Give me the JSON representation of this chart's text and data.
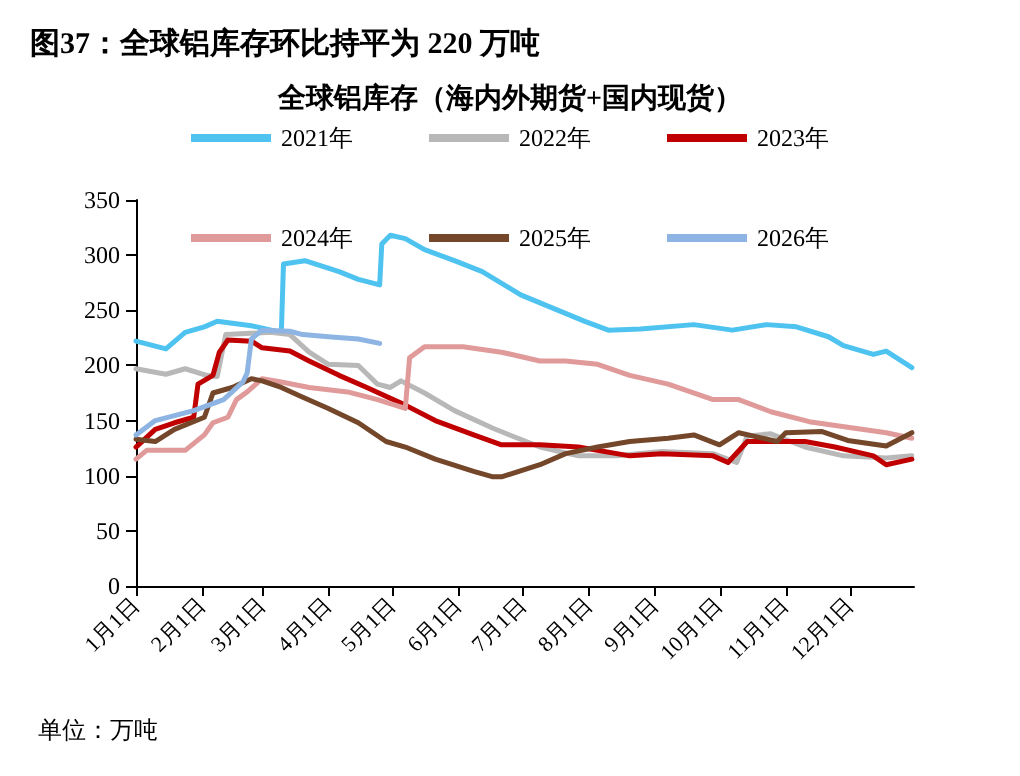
{
  "chart_data": {
    "type": "line",
    "title": "图37：全球铝库存环比持平为 220 万吨",
    "subtitle": "全球铝库存（海内外期货+国内现货）",
    "annotations": [
      "单位：万吨"
    ],
    "xlim": [
      "--01-01",
      "--12-31"
    ],
    "xticks": [
      {
        "value": "--01-01",
        "label": "1月1日"
      },
      {
        "value": "--02-01",
        "label": "2月1日"
      },
      {
        "value": "--03-01",
        "label": "3月1日"
      },
      {
        "value": "--04-01",
        "label": "4月1日"
      },
      {
        "value": "--05-01",
        "label": "5月1日"
      },
      {
        "value": "--06-01",
        "label": "6月1日"
      },
      {
        "value": "--07-01",
        "label": "7月1日"
      },
      {
        "value": "--08-01",
        "label": "8月1日"
      },
      {
        "value": "--09-01",
        "label": "9月1日"
      },
      {
        "value": "--10-01",
        "label": "10月1日"
      },
      {
        "value": "--11-01",
        "label": "11月1日"
      },
      {
        "value": "--12-01",
        "label": "12月1日"
      }
    ],
    "ylim": [
      0,
      350
    ],
    "yticks": [
      0,
      50,
      100,
      150,
      200,
      250,
      300,
      350
    ],
    "grid": false,
    "legend": "top",
    "marker": "none",
    "line_style": "solid",
    "series": [
      {
        "name": "2021年",
        "color": "#4fc3f0",
        "x": [
          "--01-01",
          "--01-15",
          "--01-24",
          "--02-02",
          "--02-08",
          "--02-24",
          "--03-10",
          "--03-11",
          "--03-21",
          "--04-06",
          "--04-15",
          "--04-25",
          "--04-26",
          "--04-30",
          "--05-07",
          "--05-16",
          "--05-30",
          "--06-12",
          "--06-30",
          "--07-30",
          "--08-10",
          "--08-25",
          "--09-19",
          "--10-07",
          "--10-23",
          "--11-06",
          "--11-21",
          "--11-28",
          "--12-12",
          "--12-18",
          "--12-30"
        ],
        "values": [
          222,
          215,
          230,
          235,
          240,
          236,
          230,
          292,
          295,
          285,
          278,
          273,
          310,
          318,
          315,
          305,
          295,
          285,
          264,
          240,
          232,
          233,
          237,
          232,
          237,
          235,
          226,
          218,
          210,
          213,
          198
        ]
      },
      {
        "name": "2022年",
        "color": "#b8b8b8",
        "x": [
          "--01-01",
          "--01-15",
          "--01-24",
          "--02-03",
          "--02-08",
          "--02-12",
          "--03-05",
          "--03-14",
          "--03-23",
          "--04-01",
          "--04-15",
          "--04-24",
          "--04-30",
          "--05-05",
          "--05-16",
          "--05-30",
          "--06-17",
          "--06-26",
          "--07-09",
          "--07-27",
          "--08-14",
          "--09-04",
          "--09-28",
          "--10-09",
          "--10-14",
          "--10-25",
          "--11-10",
          "--11-28",
          "--12-18",
          "--12-30"
        ],
        "values": [
          197,
          192,
          197,
          191,
          190,
          228,
          230,
          228,
          212,
          201,
          200,
          183,
          180,
          186,
          175,
          159,
          143,
          136,
          126,
          118,
          118,
          122,
          120,
          112,
          136,
          138,
          126,
          118,
          116,
          118
        ]
      },
      {
        "name": "2023年",
        "color": "#c00000",
        "x": [
          "--01-01",
          "--01-10",
          "--01-19",
          "--01-28",
          "--01-30",
          "--02-06",
          "--02-09",
          "--02-13",
          "--02-24",
          "--03-01",
          "--03-14",
          "--03-23",
          "--04-06",
          "--04-19",
          "--05-07",
          "--05-21",
          "--06-08",
          "--06-21",
          "--07-09",
          "--07-27",
          "--08-20",
          "--09-04",
          "--09-28",
          "--10-05",
          "--10-14",
          "--11-10",
          "--11-24",
          "--12-12",
          "--12-18",
          "--12-30"
        ],
        "values": [
          126,
          142,
          148,
          153,
          183,
          191,
          212,
          223,
          222,
          216,
          213,
          204,
          191,
          180,
          164,
          150,
          137,
          128,
          128,
          126,
          118,
          120,
          118,
          112,
          131,
          131,
          126,
          118,
          110,
          115
        ]
      },
      {
        "name": "2024年",
        "color": "#e09a9a",
        "x": [
          "--01-01",
          "--01-06",
          "--01-24",
          "--02-02",
          "--02-06",
          "--02-13",
          "--02-17",
          "--02-22",
          "--03-01",
          "--03-10",
          "--03-23",
          "--04-10",
          "--04-24",
          "--05-07",
          "--05-09",
          "--05-16",
          "--06-03",
          "--06-21",
          "--07-09",
          "--07-21",
          "--08-05",
          "--08-20",
          "--09-07",
          "--09-28",
          "--10-10",
          "--10-25",
          "--11-12",
          "--11-30",
          "--12-18",
          "--12-30"
        ],
        "values": [
          115,
          123,
          123,
          137,
          148,
          153,
          169,
          176,
          188,
          185,
          180,
          176,
          169,
          161,
          207,
          217,
          217,
          212,
          204,
          204,
          201,
          191,
          183,
          169,
          169,
          158,
          149,
          144,
          139,
          134
        ]
      },
      {
        "name": "2025年",
        "color": "#74472a",
        "x": [
          "--01-01",
          "--01-10",
          "--01-19",
          "--02-02",
          "--02-06",
          "--02-15",
          "--02-24",
          "--03-01",
          "--03-10",
          "--03-19",
          "--04-01",
          "--04-15",
          "--04-28",
          "--05-07",
          "--05-21",
          "--06-08",
          "--06-17",
          "--06-21",
          "--07-09",
          "--07-21",
          "--08-05",
          "--08-20",
          "--09-07",
          "--09-19",
          "--10-01",
          "--10-10",
          "--10-28",
          "--11-01",
          "--11-18",
          "--11-30",
          "--12-18",
          "--12-30"
        ],
        "values": [
          133,
          131,
          142,
          153,
          175,
          180,
          188,
          186,
          180,
          172,
          161,
          148,
          131,
          126,
          115,
          104,
          99,
          99,
          110,
          120,
          126,
          131,
          134,
          137,
          128,
          139,
          131,
          139,
          140,
          132,
          127,
          139
        ]
      },
      {
        "name": "2026年",
        "color": "#8db4e2",
        "x": [
          "--01-01",
          "--01-10",
          "--01-28",
          "--02-11",
          "--02-20",
          "--02-22",
          "--02-24",
          "--03-01",
          "--03-14",
          "--03-20",
          "--04-01",
          "--04-15",
          "--04-25"
        ],
        "values": [
          137,
          150,
          159,
          169,
          185,
          193,
          224,
          232,
          231,
          228,
          226,
          224,
          220
        ]
      }
    ]
  }
}
